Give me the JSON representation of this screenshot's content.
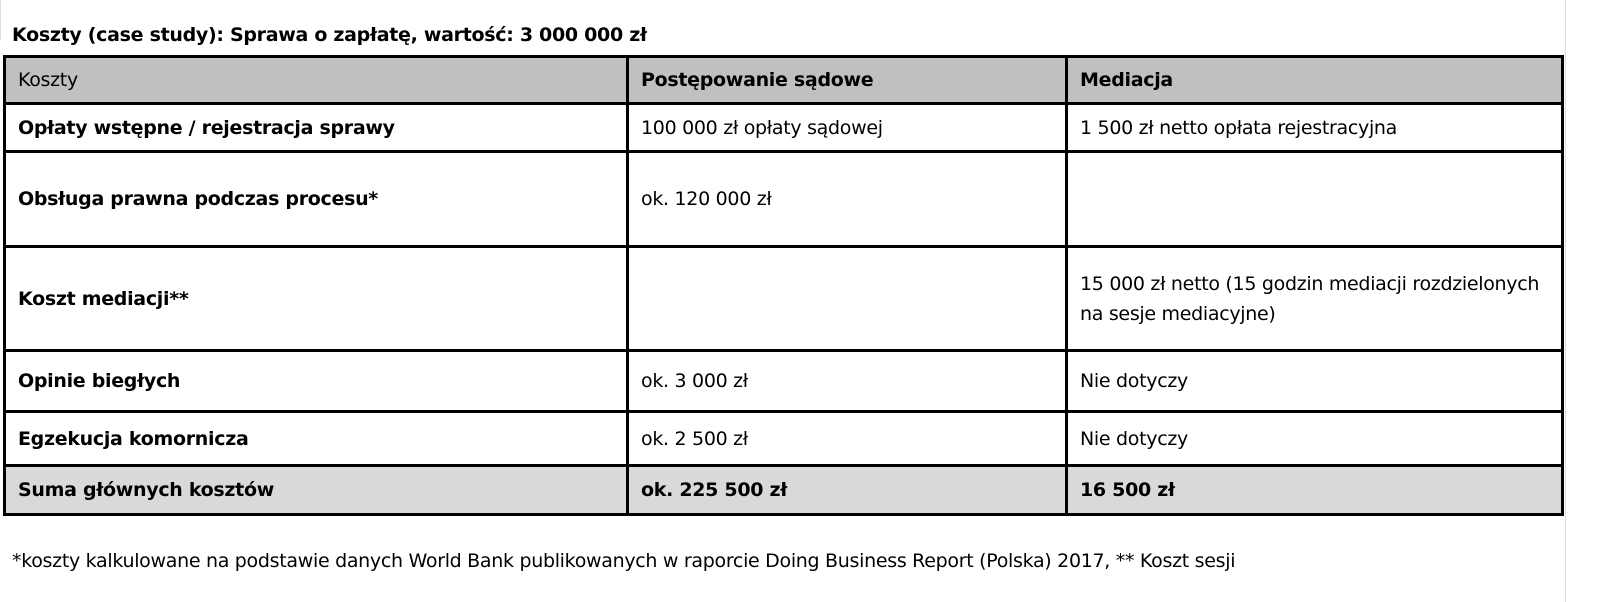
{
  "title": "Koszty (case study): Sprawa o zapłatę, wartość: 3 000 000 zł",
  "table": {
    "headers": [
      "Koszty",
      "Postępowanie sądowe",
      "Mediacja"
    ],
    "rows": [
      [
        "Opłaty wstępne / rejestracja sprawy",
        "100 000 zł opłaty sądowej",
        "1 500 zł netto opłata rejestracyjna"
      ],
      [
        "Obsługa prawna podczas procesu*",
        "ok. 120 000 zł",
        ""
      ],
      [
        "Koszt mediacji**",
        "",
        "15 000 zł netto (15 godzin mediacji rozdzielonych na sesje mediacyjne)"
      ],
      [
        "Opinie biegłych",
        "ok. 3 000 zł",
        "Nie dotyczy"
      ],
      [
        "Egzekucja komornicza",
        "ok. 2 500 zł",
        "Nie dotyczy"
      ]
    ],
    "sum": [
      "Suma głównych kosztów",
      "ok. 225 500 zł",
      "16 500 zł"
    ],
    "header_color": "#c0c0c0",
    "sum_color": "#d9d9d9"
  },
  "footnote": "*koszty kalkulowane na podstawie danych World Bank publikowanych w raporcie Doing Business Report (Polska) 2017, ** Koszt sesji"
}
